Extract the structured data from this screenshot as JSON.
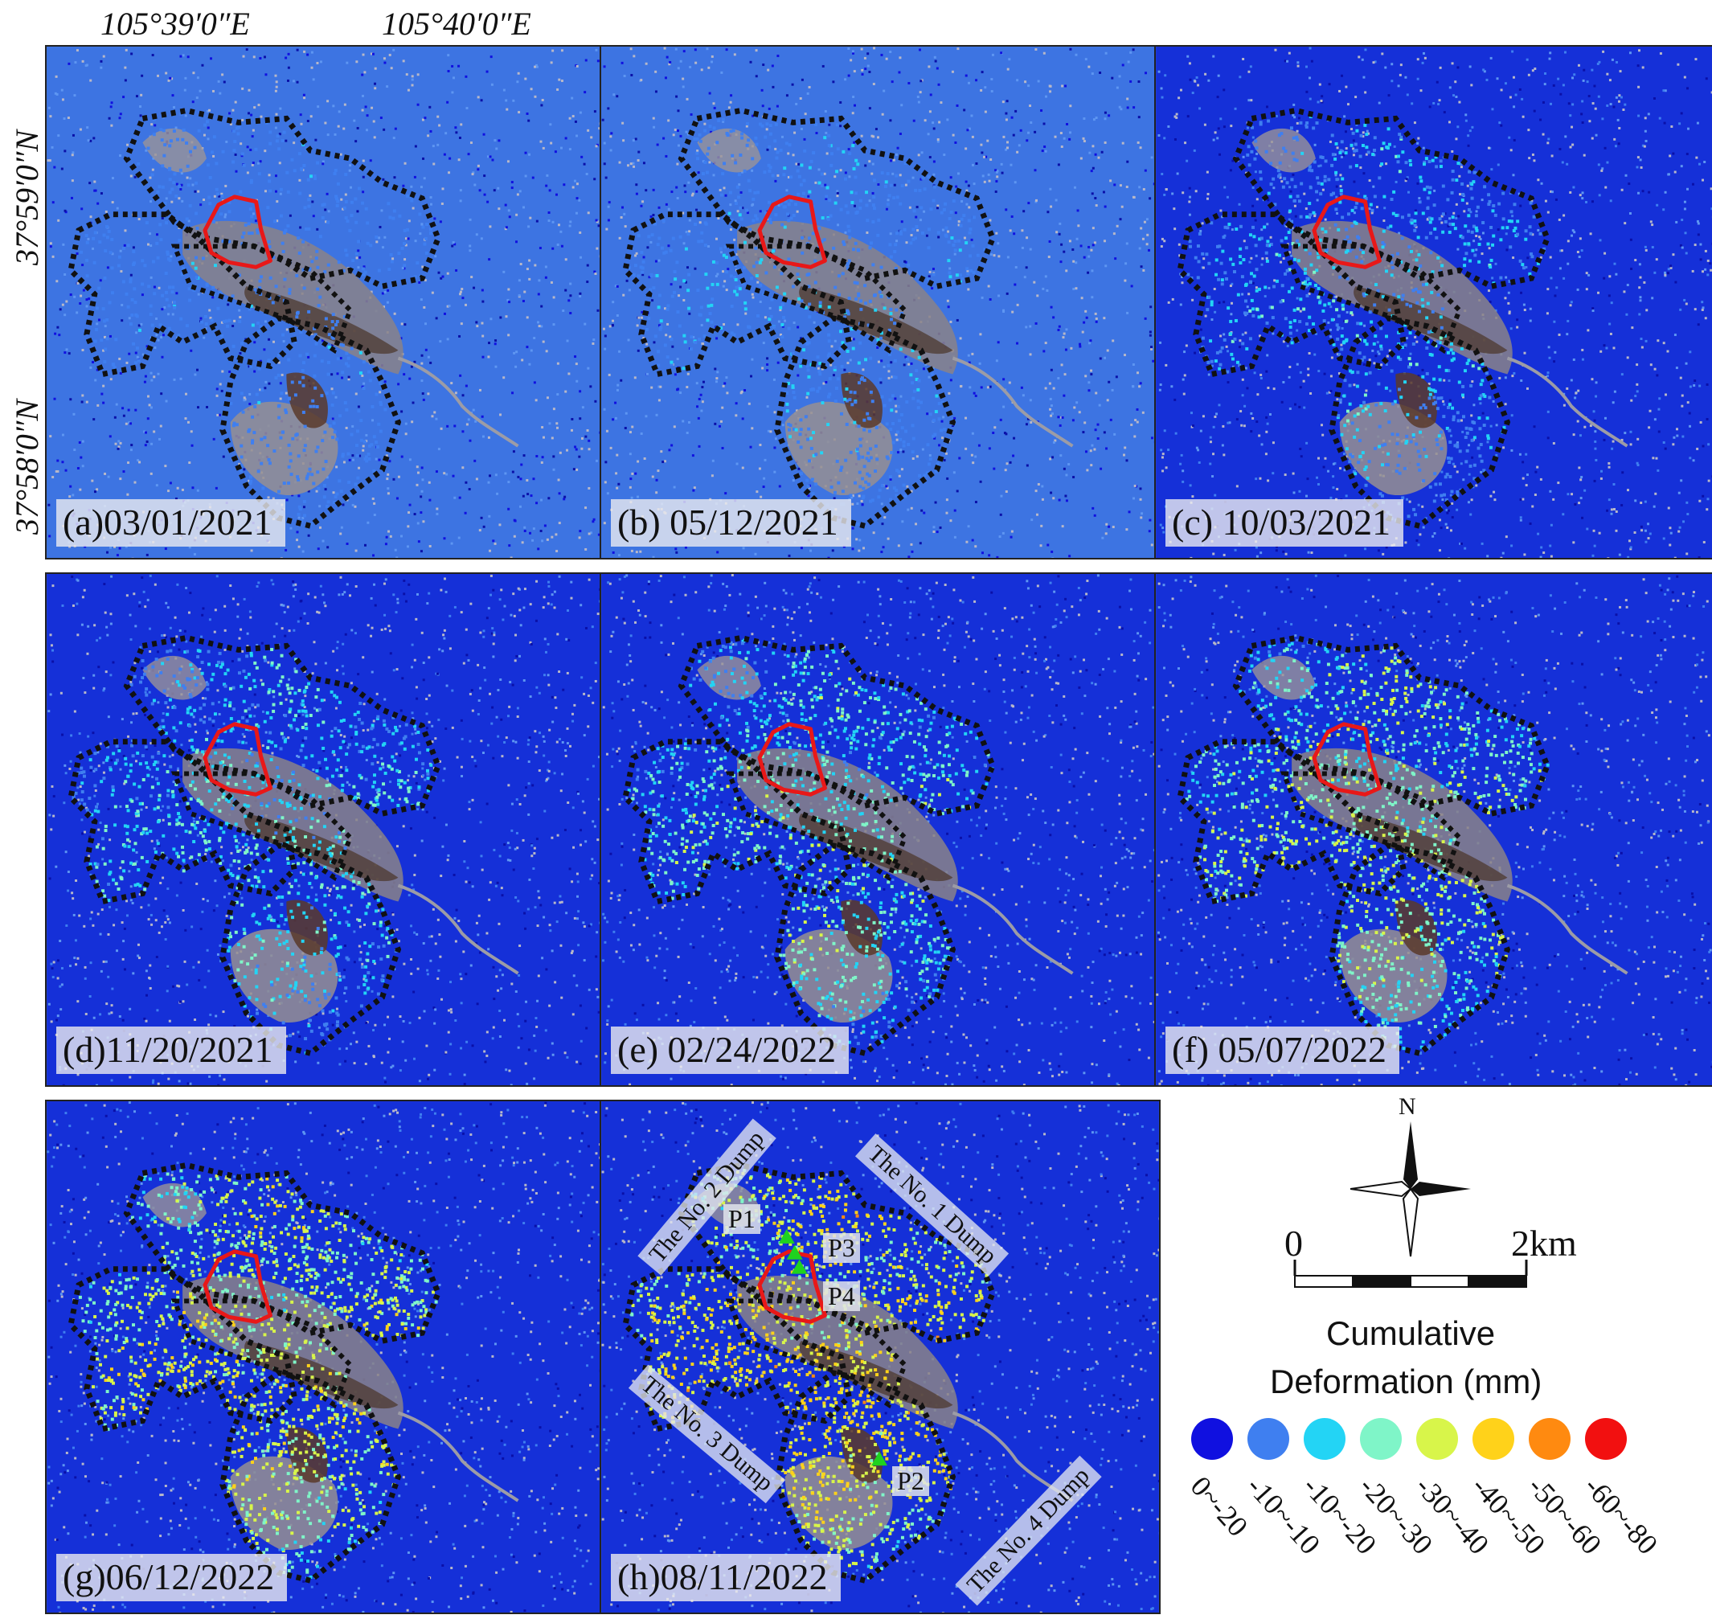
{
  "coordinates": {
    "lon": [
      "105°39′0″E",
      "105°40′0″E"
    ],
    "lat": [
      "37°59′0″N",
      "37°58′0″N"
    ]
  },
  "panels": [
    {
      "label": "(a)03/01/2021",
      "stage": 0
    },
    {
      "label": "(b) 05/12/2021",
      "stage": 1
    },
    {
      "label": "(c) 10/03/2021",
      "stage": 2
    },
    {
      "label": "(d)11/20/2021",
      "stage": 3
    },
    {
      "label": "(e) 02/24/2022",
      "stage": 4
    },
    {
      "label": "(f) 05/07/2022",
      "stage": 5
    },
    {
      "label": "(g)06/12/2022",
      "stage": 6
    },
    {
      "label": "(h)08/11/2022",
      "stage": 7
    }
  ],
  "dump_labels": {
    "no2": "The No. 2 Dump",
    "no1": "The No. 1 Dump",
    "no3": "The No. 3 Dump",
    "no4": "The No. 4 Dump"
  },
  "points": [
    "P1",
    "P2",
    "P3",
    "P4"
  ],
  "north_label": "N",
  "scale_bar": {
    "start": "0",
    "end": "2km"
  },
  "legend": {
    "title_line1": "Cumulative",
    "title_line2": "Deformation  (mm)",
    "classes": [
      {
        "range": "0~-20",
        "color": "#1010e0"
      },
      {
        "range": "-10~-10",
        "color": "#3f7ff0"
      },
      {
        "range": "-10~-20",
        "color": "#23d4f5"
      },
      {
        "range": "-20~-30",
        "color": "#7ff5c8"
      },
      {
        "range": "-30~-40",
        "color": "#d8f54a"
      },
      {
        "range": "-40~-50",
        "color": "#ffd21a"
      },
      {
        "range": "-50~-60",
        "color": "#ff8a10"
      },
      {
        "range": "-60~-80",
        "color": "#f21010"
      }
    ]
  },
  "colors": {
    "boundary_mine": "#e81818",
    "boundary_dump": "#111111",
    "point_marker": "#1fd21f"
  }
}
